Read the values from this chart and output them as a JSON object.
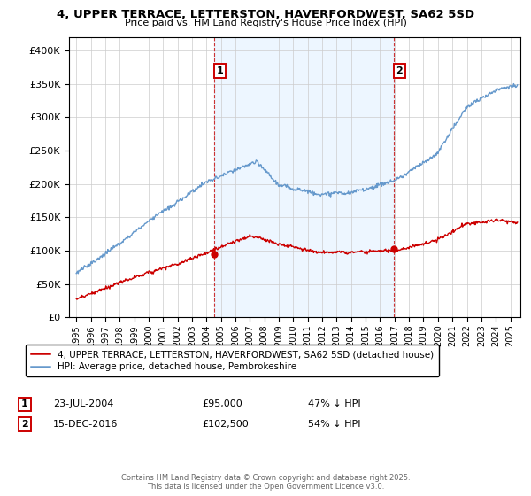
{
  "title": "4, UPPER TERRACE, LETTERSTON, HAVERFORDWEST, SA62 5SD",
  "subtitle": "Price paid vs. HM Land Registry's House Price Index (HPI)",
  "legend_property": "4, UPPER TERRACE, LETTERSTON, HAVERFORDWEST, SA62 5SD (detached house)",
  "legend_hpi": "HPI: Average price, detached house, Pembrokeshire",
  "annotation1_label": "1",
  "annotation1_date": "23-JUL-2004",
  "annotation1_price": "£95,000",
  "annotation1_hpi": "47% ↓ HPI",
  "annotation2_label": "2",
  "annotation2_date": "15-DEC-2016",
  "annotation2_price": "£102,500",
  "annotation2_hpi": "54% ↓ HPI",
  "footer": "Contains HM Land Registry data © Crown copyright and database right 2025.\nThis data is licensed under the Open Government Licence v3.0.",
  "property_color": "#cc0000",
  "hpi_color": "#6699cc",
  "hpi_fill_color": "#ddeeff",
  "sale1_x": 2004.55,
  "sale1_y": 95000,
  "sale2_x": 2016.96,
  "sale2_y": 102500,
  "ylim": [
    0,
    420000
  ],
  "xlim_start": 1994.5,
  "xlim_end": 2025.7,
  "yticks": [
    0,
    50000,
    100000,
    150000,
    200000,
    250000,
    300000,
    350000,
    400000
  ],
  "xtick_years": [
    1995,
    1996,
    1997,
    1998,
    1999,
    2000,
    2001,
    2002,
    2003,
    2004,
    2005,
    2006,
    2007,
    2008,
    2009,
    2010,
    2011,
    2012,
    2013,
    2014,
    2015,
    2016,
    2017,
    2018,
    2019,
    2020,
    2021,
    2022,
    2023,
    2024,
    2025
  ],
  "background_color": "#ffffff",
  "grid_color": "#cccccc"
}
